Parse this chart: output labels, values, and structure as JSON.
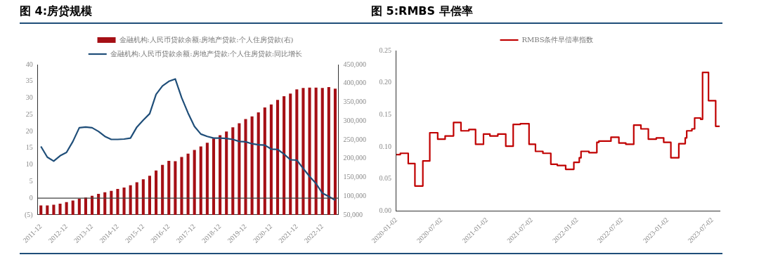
{
  "chart_data": [
    {
      "type": "bar",
      "title": "图 4:房贷规模",
      "categories": [
        "2011-12",
        null,
        null,
        null,
        "2012-12",
        null,
        null,
        null,
        "2013-12",
        null,
        null,
        null,
        "2014-12",
        null,
        null,
        null,
        "2015-12",
        null,
        null,
        null,
        "2016-12",
        null,
        null,
        null,
        "2017-12",
        null,
        null,
        null,
        "2018-12",
        null,
        null,
        null,
        "2019-12",
        null,
        null,
        null,
        "2020-12",
        null,
        null,
        null,
        "2021-12",
        null,
        null,
        null,
        "2022-12",
        null,
        null
      ],
      "series": [
        {
          "name": "金融机构:人民币贷款余额:房地产贷款:个人住房贷款(右)",
          "axis": "y2",
          "color": "#a50f15",
          "values": [
            75000,
            75000,
            77000,
            80000,
            84000,
            88000,
            93000,
            96000,
            101000,
            106000,
            110000,
            114000,
            119000,
            123000,
            129000,
            137000,
            145000,
            154000,
            168000,
            183000,
            194000,
            193000,
            204000,
            213000,
            223000,
            232000,
            242000,
            253000,
            262000,
            272000,
            283000,
            294000,
            305000,
            312000,
            323000,
            336000,
            344000,
            356000,
            366000,
            373000,
            384000,
            388000,
            389000,
            389000,
            388000,
            390000,
            386000
          ]
        },
        {
          "name": "金融机构:人民币贷款余额:房地产贷款:个人住房贷款:同比增长",
          "type": "line",
          "axis": "y",
          "color": "#1f4e79",
          "values": [
            15.5,
            12.3,
            11.1,
            12.7,
            13.7,
            17.0,
            21.1,
            21.3,
            21.1,
            20.0,
            18.5,
            17.6,
            17.6,
            17.7,
            18.0,
            21.3,
            23.4,
            25.3,
            31.1,
            33.6,
            35.0,
            35.7,
            30.1,
            25.5,
            21.5,
            19.2,
            18.5,
            18.0,
            18.0,
            17.9,
            17.6,
            17.0,
            16.9,
            16.3,
            16.0,
            15.9,
            14.7,
            14.6,
            13.2,
            11.5,
            11.4,
            8.9,
            6.5,
            4.4,
            1.5,
            0.5,
            -0.6
          ]
        }
      ],
      "ylim": [
        -5,
        40
      ],
      "yticks": [
        {
          "value": -5,
          "label": "(5)"
        },
        0,
        5,
        10,
        15,
        20,
        25,
        30,
        35,
        40
      ],
      "y2lim": [
        50000,
        450000
      ],
      "y2ticks": [
        {
          "value": 50000,
          "label": "50,000"
        },
        {
          "value": 100000,
          "label": "100,000"
        },
        {
          "value": 150000,
          "label": "150,000"
        },
        {
          "value": 200000,
          "label": "200,000"
        },
        {
          "value": 250000,
          "label": "250,000"
        },
        {
          "value": 300000,
          "label": "300,000"
        },
        {
          "value": 350000,
          "label": "350,000"
        },
        {
          "value": 400000,
          "label": "400,000"
        },
        {
          "value": 450000,
          "label": "450,000"
        }
      ],
      "ref_lines": [
        {
          "axis": "y",
          "value": 0,
          "color": "#404040"
        }
      ],
      "legend": "top",
      "marker": "none"
    },
    {
      "type": "step",
      "title": "图 5:RMBS 早偿率",
      "x": [
        "2020-01-02",
        "2020-01-18",
        "2020-02-19",
        "2020-03-17",
        "2020-04-18",
        "2020-05-16",
        "2020-06-17",
        "2020-07-17",
        "2020-08-20",
        "2020-09-19",
        "2020-10-21",
        "2020-11-17",
        "2020-12-19",
        "2021-01-14",
        "2021-02-15",
        "2021-03-19",
        "2021-04-18",
        "2021-05-17",
        "2021-06-21",
        "2021-07-17",
        "2021-08-16",
        "2021-09-17",
        "2021-10-13",
        "2021-11-16",
        "2021-12-19",
        "2022-01-10",
        "2022-01-17",
        "2022-02-18",
        "2022-03-22",
        "2022-03-30",
        "2022-05-18",
        "2022-06-19",
        "2022-07-17",
        "2022-08-18",
        "2022-09-16",
        "2022-10-16",
        "2022-11-17",
        "2022-12-17",
        "2023-01-15",
        "2023-02-16",
        "2023-03-14",
        "2023-03-20",
        "2023-04-10",
        "2023-04-21",
        "2023-05-15",
        "2023-05-23",
        "2023-06-16",
        "2023-07-15",
        "2023-07-31"
      ],
      "series": [
        {
          "name": "RMBS条件早偿率指数",
          "color": "#c00000",
          "values": [
            0.088,
            0.09,
            0.074,
            0.039,
            0.078,
            0.122,
            0.112,
            0.117,
            0.138,
            0.125,
            0.127,
            0.104,
            0.12,
            0.117,
            0.12,
            0.101,
            0.135,
            0.136,
            0.104,
            0.093,
            0.09,
            0.073,
            0.071,
            0.065,
            0.076,
            0.083,
            0.093,
            0.091,
            0.107,
            0.109,
            0.115,
            0.106,
            0.104,
            0.134,
            0.128,
            0.112,
            0.114,
            0.107,
            0.083,
            0.105,
            0.114,
            0.125,
            0.128,
            0.145,
            0.143,
            0.216,
            0.172,
            0.132,
            0.132
          ]
        }
      ],
      "xlim": [
        "2020-01-02",
        "2023-07-31"
      ],
      "xticks": [
        "2020-01-02",
        "2020-07-02",
        "2021-01-02",
        "2021-07-02",
        "2022-01-02",
        "2022-07-02",
        "2023-01-02",
        "2023-07-02"
      ],
      "ylim": [
        0,
        0.25
      ],
      "yticks": [
        {
          "value": 0,
          "label": "0.00"
        },
        {
          "value": 0.05,
          "label": "0.05"
        },
        {
          "value": 0.1,
          "label": "0.10"
        },
        {
          "value": 0.15,
          "label": "0.15"
        },
        {
          "value": 0.2,
          "label": "0.20"
        },
        {
          "value": 0.25,
          "label": "0.25"
        }
      ],
      "legend": "top",
      "marker": "none"
    }
  ]
}
